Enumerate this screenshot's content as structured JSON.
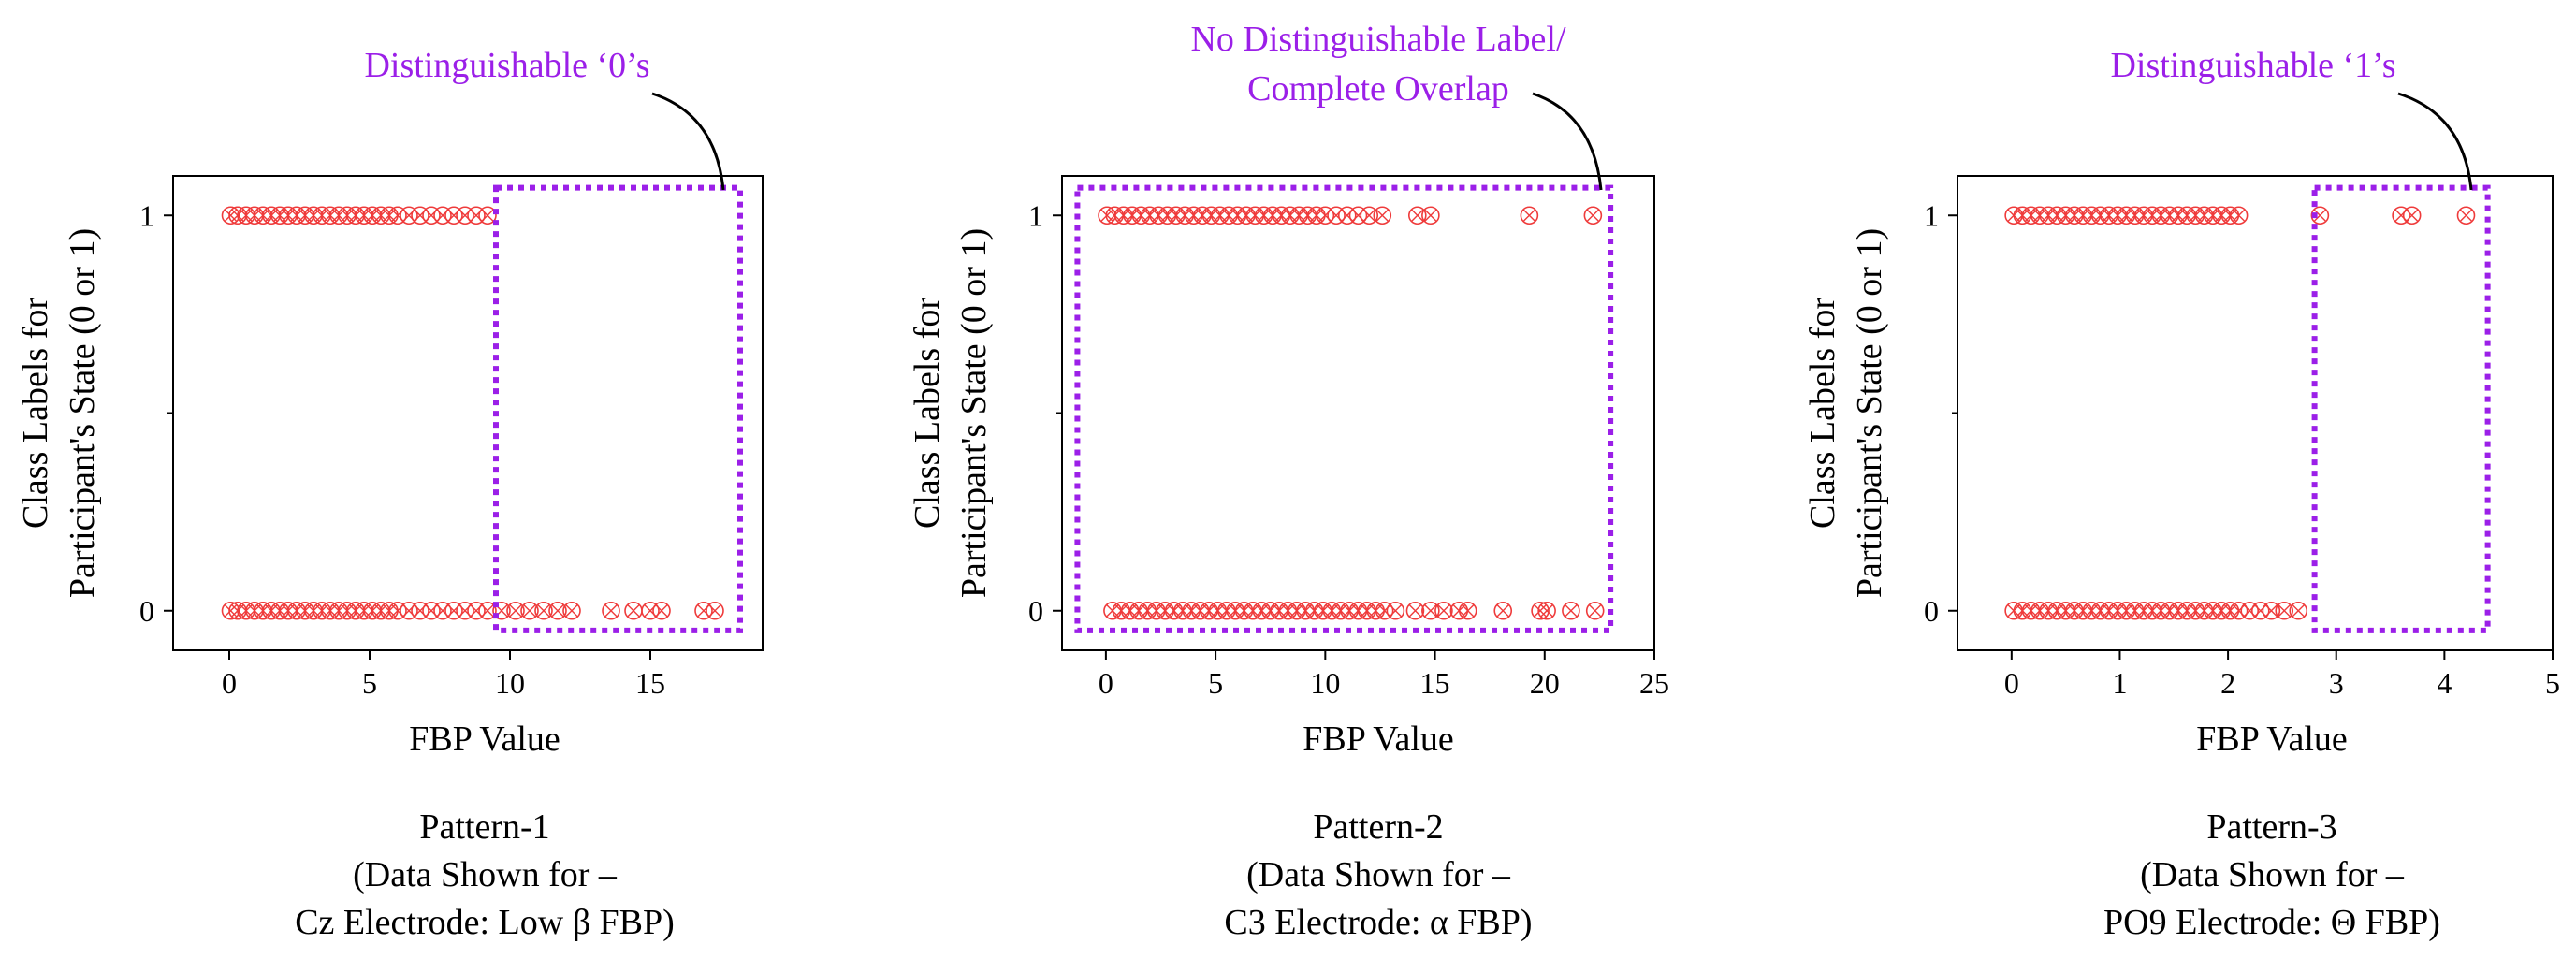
{
  "chart_data": [
    {
      "type": "scatter",
      "xlabel": "FBP Value",
      "ylabel": [
        "Class Labels for",
        "Participant's State (0 or 1)"
      ],
      "xlim": [
        -2,
        19
      ],
      "ylim": [
        -0.1,
        1.1
      ],
      "xticks": [
        0,
        5,
        10,
        15
      ],
      "yticks": [
        0,
        1
      ],
      "series": [
        {
          "values": [
            {
              "x": 0.05,
              "y": 1
            },
            {
              "x": 0.3,
              "y": 1
            },
            {
              "x": 0.6,
              "y": 1
            },
            {
              "x": 0.9,
              "y": 1
            },
            {
              "x": 1.2,
              "y": 1
            },
            {
              "x": 1.5,
              "y": 1
            },
            {
              "x": 1.8,
              "y": 1
            },
            {
              "x": 2.1,
              "y": 1
            },
            {
              "x": 2.4,
              "y": 1
            },
            {
              "x": 2.7,
              "y": 1
            },
            {
              "x": 3.0,
              "y": 1
            },
            {
              "x": 3.3,
              "y": 1
            },
            {
              "x": 3.6,
              "y": 1
            },
            {
              "x": 3.9,
              "y": 1
            },
            {
              "x": 4.2,
              "y": 1
            },
            {
              "x": 4.5,
              "y": 1
            },
            {
              "x": 4.8,
              "y": 1
            },
            {
              "x": 5.1,
              "y": 1
            },
            {
              "x": 5.4,
              "y": 1
            },
            {
              "x": 5.7,
              "y": 1
            },
            {
              "x": 6.0,
              "y": 1
            },
            {
              "x": 6.4,
              "y": 1
            },
            {
              "x": 6.8,
              "y": 1
            },
            {
              "x": 7.2,
              "y": 1
            },
            {
              "x": 7.6,
              "y": 1
            },
            {
              "x": 8.0,
              "y": 1
            },
            {
              "x": 8.4,
              "y": 1
            },
            {
              "x": 8.8,
              "y": 1
            },
            {
              "x": 9.2,
              "y": 1
            },
            {
              "x": 0.05,
              "y": 0
            },
            {
              "x": 0.3,
              "y": 0
            },
            {
              "x": 0.6,
              "y": 0
            },
            {
              "x": 0.9,
              "y": 0
            },
            {
              "x": 1.2,
              "y": 0
            },
            {
              "x": 1.5,
              "y": 0
            },
            {
              "x": 1.8,
              "y": 0
            },
            {
              "x": 2.1,
              "y": 0
            },
            {
              "x": 2.4,
              "y": 0
            },
            {
              "x": 2.7,
              "y": 0
            },
            {
              "x": 3.0,
              "y": 0
            },
            {
              "x": 3.3,
              "y": 0
            },
            {
              "x": 3.6,
              "y": 0
            },
            {
              "x": 3.9,
              "y": 0
            },
            {
              "x": 4.2,
              "y": 0
            },
            {
              "x": 4.5,
              "y": 0
            },
            {
              "x": 4.8,
              "y": 0
            },
            {
              "x": 5.1,
              "y": 0
            },
            {
              "x": 5.4,
              "y": 0
            },
            {
              "x": 5.7,
              "y": 0
            },
            {
              "x": 6.0,
              "y": 0
            },
            {
              "x": 6.4,
              "y": 0
            },
            {
              "x": 6.8,
              "y": 0
            },
            {
              "x": 7.2,
              "y": 0
            },
            {
              "x": 7.6,
              "y": 0
            },
            {
              "x": 8.0,
              "y": 0
            },
            {
              "x": 8.4,
              "y": 0
            },
            {
              "x": 8.8,
              "y": 0
            },
            {
              "x": 9.2,
              "y": 0
            },
            {
              "x": 9.7,
              "y": 0
            },
            {
              "x": 10.2,
              "y": 0
            },
            {
              "x": 10.7,
              "y": 0
            },
            {
              "x": 11.2,
              "y": 0
            },
            {
              "x": 11.7,
              "y": 0
            },
            {
              "x": 12.2,
              "y": 0
            },
            {
              "x": 13.6,
              "y": 0
            },
            {
              "x": 14.4,
              "y": 0
            },
            {
              "x": 15.0,
              "y": 0
            },
            {
              "x": 15.4,
              "y": 0
            },
            {
              "x": 16.9,
              "y": 0
            },
            {
              "x": 17.3,
              "y": 0
            }
          ]
        }
      ],
      "annotation": {
        "text": "Distinguishable ‘0’s",
        "box": {
          "x": [
            9.5,
            18.2
          ],
          "y": [
            -0.05,
            1.07
          ]
        }
      },
      "caption": [
        "Pattern-1",
        "(Data Shown for –",
        "Cz Electrode:  Low β FBP)"
      ]
    },
    {
      "type": "scatter",
      "xlabel": "FBP Value",
      "ylabel": [
        "Class Labels for",
        "Participant's State (0 or 1)"
      ],
      "xlim": [
        -2,
        25
      ],
      "ylim": [
        -0.1,
        1.1
      ],
      "xticks": [
        0,
        5,
        10,
        15,
        20,
        25
      ],
      "yticks": [
        0,
        1
      ],
      "series": [
        {
          "values": [
            {
              "x": 0.05,
              "y": 1
            },
            {
              "x": 0.4,
              "y": 1
            },
            {
              "x": 0.8,
              "y": 1
            },
            {
              "x": 1.2,
              "y": 1
            },
            {
              "x": 1.6,
              "y": 1
            },
            {
              "x": 2.0,
              "y": 1
            },
            {
              "x": 2.4,
              "y": 1
            },
            {
              "x": 2.8,
              "y": 1
            },
            {
              "x": 3.2,
              "y": 1
            },
            {
              "x": 3.6,
              "y": 1
            },
            {
              "x": 4.0,
              "y": 1
            },
            {
              "x": 4.4,
              "y": 1
            },
            {
              "x": 4.8,
              "y": 1
            },
            {
              "x": 5.2,
              "y": 1
            },
            {
              "x": 5.6,
              "y": 1
            },
            {
              "x": 6.0,
              "y": 1
            },
            {
              "x": 6.4,
              "y": 1
            },
            {
              "x": 6.8,
              "y": 1
            },
            {
              "x": 7.2,
              "y": 1
            },
            {
              "x": 7.6,
              "y": 1
            },
            {
              "x": 8.0,
              "y": 1
            },
            {
              "x": 8.4,
              "y": 1
            },
            {
              "x": 8.8,
              "y": 1
            },
            {
              "x": 9.2,
              "y": 1
            },
            {
              "x": 9.6,
              "y": 1
            },
            {
              "x": 10.0,
              "y": 1
            },
            {
              "x": 10.5,
              "y": 1
            },
            {
              "x": 11.0,
              "y": 1
            },
            {
              "x": 11.5,
              "y": 1
            },
            {
              "x": 12.0,
              "y": 1
            },
            {
              "x": 12.6,
              "y": 1
            },
            {
              "x": 14.2,
              "y": 1
            },
            {
              "x": 14.8,
              "y": 1
            },
            {
              "x": 19.3,
              "y": 1
            },
            {
              "x": 22.2,
              "y": 1
            },
            {
              "x": 0.3,
              "y": 0
            },
            {
              "x": 0.7,
              "y": 0
            },
            {
              "x": 1.1,
              "y": 0
            },
            {
              "x": 1.5,
              "y": 0
            },
            {
              "x": 1.9,
              "y": 0
            },
            {
              "x": 2.3,
              "y": 0
            },
            {
              "x": 2.7,
              "y": 0
            },
            {
              "x": 3.1,
              "y": 0
            },
            {
              "x": 3.5,
              "y": 0
            },
            {
              "x": 3.9,
              "y": 0
            },
            {
              "x": 4.3,
              "y": 0
            },
            {
              "x": 4.7,
              "y": 0
            },
            {
              "x": 5.1,
              "y": 0
            },
            {
              "x": 5.5,
              "y": 0
            },
            {
              "x": 5.9,
              "y": 0
            },
            {
              "x": 6.3,
              "y": 0
            },
            {
              "x": 6.7,
              "y": 0
            },
            {
              "x": 7.1,
              "y": 0
            },
            {
              "x": 7.5,
              "y": 0
            },
            {
              "x": 7.9,
              "y": 0
            },
            {
              "x": 8.3,
              "y": 0
            },
            {
              "x": 8.7,
              "y": 0
            },
            {
              "x": 9.1,
              "y": 0
            },
            {
              "x": 9.5,
              "y": 0
            },
            {
              "x": 9.9,
              "y": 0
            },
            {
              "x": 10.3,
              "y": 0
            },
            {
              "x": 10.7,
              "y": 0
            },
            {
              "x": 11.1,
              "y": 0
            },
            {
              "x": 11.5,
              "y": 0
            },
            {
              "x": 11.9,
              "y": 0
            },
            {
              "x": 12.3,
              "y": 0
            },
            {
              "x": 12.7,
              "y": 0
            },
            {
              "x": 13.2,
              "y": 0
            },
            {
              "x": 14.1,
              "y": 0
            },
            {
              "x": 14.8,
              "y": 0
            },
            {
              "x": 15.4,
              "y": 0
            },
            {
              "x": 16.1,
              "y": 0
            },
            {
              "x": 16.5,
              "y": 0
            },
            {
              "x": 18.1,
              "y": 0
            },
            {
              "x": 19.8,
              "y": 0
            },
            {
              "x": 20.1,
              "y": 0
            },
            {
              "x": 21.2,
              "y": 0
            },
            {
              "x": 22.3,
              "y": 0
            }
          ]
        }
      ],
      "annotation": {
        "text": [
          "No Distinguishable Label/",
          "Complete Overlap"
        ],
        "box": {
          "x": [
            -1.3,
            23.0
          ],
          "y": [
            -0.05,
            1.07
          ]
        }
      },
      "caption": [
        "Pattern-2",
        "(Data Shown for –",
        "C3 Electrode:  α FBP)"
      ]
    },
    {
      "type": "scatter",
      "xlabel": "FBP Value",
      "ylabel": [
        "Class Labels for",
        "Participant's State (0 or 1)"
      ],
      "xlim": [
        -0.5,
        5
      ],
      "ylim": [
        -0.1,
        1.1
      ],
      "xticks": [
        0,
        1,
        2,
        3,
        4,
        5
      ],
      "yticks": [
        0,
        1
      ],
      "series": [
        {
          "values": [
            {
              "x": 0.02,
              "y": 1
            },
            {
              "x": 0.1,
              "y": 1
            },
            {
              "x": 0.18,
              "y": 1
            },
            {
              "x": 0.26,
              "y": 1
            },
            {
              "x": 0.34,
              "y": 1
            },
            {
              "x": 0.42,
              "y": 1
            },
            {
              "x": 0.5,
              "y": 1
            },
            {
              "x": 0.58,
              "y": 1
            },
            {
              "x": 0.66,
              "y": 1
            },
            {
              "x": 0.74,
              "y": 1
            },
            {
              "x": 0.82,
              "y": 1
            },
            {
              "x": 0.9,
              "y": 1
            },
            {
              "x": 0.98,
              "y": 1
            },
            {
              "x": 1.06,
              "y": 1
            },
            {
              "x": 1.14,
              "y": 1
            },
            {
              "x": 1.22,
              "y": 1
            },
            {
              "x": 1.3,
              "y": 1
            },
            {
              "x": 1.38,
              "y": 1
            },
            {
              "x": 1.46,
              "y": 1
            },
            {
              "x": 1.54,
              "y": 1
            },
            {
              "x": 1.62,
              "y": 1
            },
            {
              "x": 1.7,
              "y": 1
            },
            {
              "x": 1.78,
              "y": 1
            },
            {
              "x": 1.86,
              "y": 1
            },
            {
              "x": 1.94,
              "y": 1
            },
            {
              "x": 2.02,
              "y": 1
            },
            {
              "x": 2.1,
              "y": 1
            },
            {
              "x": 2.85,
              "y": 1
            },
            {
              "x": 3.6,
              "y": 1
            },
            {
              "x": 3.7,
              "y": 1
            },
            {
              "x": 4.2,
              "y": 1
            },
            {
              "x": 0.02,
              "y": 0
            },
            {
              "x": 0.1,
              "y": 0
            },
            {
              "x": 0.18,
              "y": 0
            },
            {
              "x": 0.26,
              "y": 0
            },
            {
              "x": 0.34,
              "y": 0
            },
            {
              "x": 0.42,
              "y": 0
            },
            {
              "x": 0.5,
              "y": 0
            },
            {
              "x": 0.58,
              "y": 0
            },
            {
              "x": 0.66,
              "y": 0
            },
            {
              "x": 0.74,
              "y": 0
            },
            {
              "x": 0.82,
              "y": 0
            },
            {
              "x": 0.9,
              "y": 0
            },
            {
              "x": 0.98,
              "y": 0
            },
            {
              "x": 1.06,
              "y": 0
            },
            {
              "x": 1.14,
              "y": 0
            },
            {
              "x": 1.22,
              "y": 0
            },
            {
              "x": 1.3,
              "y": 0
            },
            {
              "x": 1.38,
              "y": 0
            },
            {
              "x": 1.46,
              "y": 0
            },
            {
              "x": 1.54,
              "y": 0
            },
            {
              "x": 1.62,
              "y": 0
            },
            {
              "x": 1.7,
              "y": 0
            },
            {
              "x": 1.78,
              "y": 0
            },
            {
              "x": 1.86,
              "y": 0
            },
            {
              "x": 1.94,
              "y": 0
            },
            {
              "x": 2.02,
              "y": 0
            },
            {
              "x": 2.1,
              "y": 0
            },
            {
              "x": 2.2,
              "y": 0
            },
            {
              "x": 2.3,
              "y": 0
            },
            {
              "x": 2.4,
              "y": 0
            },
            {
              "x": 2.52,
              "y": 0
            },
            {
              "x": 2.65,
              "y": 0
            }
          ]
        }
      ],
      "annotation": {
        "text": "Distinguishable ‘1’s",
        "box": {
          "x": [
            2.8,
            4.4
          ],
          "y": [
            -0.05,
            1.07
          ]
        }
      },
      "caption": [
        "Pattern-3",
        "(Data Shown for –",
        "PO9 Electrode:  Θ FBP)"
      ]
    }
  ]
}
